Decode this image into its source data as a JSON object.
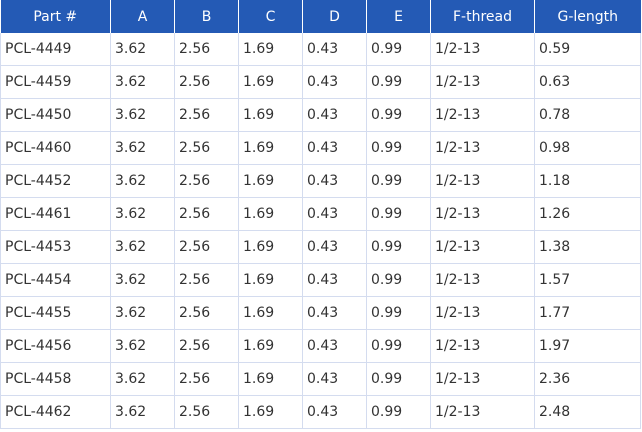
{
  "table": {
    "headers": [
      "Part #",
      "A",
      "B",
      "C",
      "D",
      "E",
      "F-thread",
      "G-length"
    ],
    "rows": [
      [
        "PCL-4449",
        "3.62",
        "2.56",
        "1.69",
        "0.43",
        "0.99",
        "1/2-13",
        "0.59"
      ],
      [
        "PCL-4459",
        "3.62",
        "2.56",
        "1.69",
        "0.43",
        "0.99",
        "1/2-13",
        "0.63"
      ],
      [
        "PCL-4450",
        "3.62",
        "2.56",
        "1.69",
        "0.43",
        "0.99",
        "1/2-13",
        "0.78"
      ],
      [
        "PCL-4460",
        "3.62",
        "2.56",
        "1.69",
        "0.43",
        "0.99",
        "1/2-13",
        "0.98"
      ],
      [
        "PCL-4452",
        "3.62",
        "2.56",
        "1.69",
        "0.43",
        "0.99",
        "1/2-13",
        "1.18"
      ],
      [
        "PCL-4461",
        "3.62",
        "2.56",
        "1.69",
        "0.43",
        "0.99",
        "1/2-13",
        "1.26"
      ],
      [
        "PCL-4453",
        "3.62",
        "2.56",
        "1.69",
        "0.43",
        "0.99",
        "1/2-13",
        "1.38"
      ],
      [
        "PCL-4454",
        "3.62",
        "2.56",
        "1.69",
        "0.43",
        "0.99",
        "1/2-13",
        "1.57"
      ],
      [
        "PCL-4455",
        "3.62",
        "2.56",
        "1.69",
        "0.43",
        "0.99",
        "1/2-13",
        "1.77"
      ],
      [
        "PCL-4456",
        "3.62",
        "2.56",
        "1.69",
        "0.43",
        "0.99",
        "1/2-13",
        "1.97"
      ],
      [
        "PCL-4458",
        "3.62",
        "2.56",
        "1.69",
        "0.43",
        "0.99",
        "1/2-13",
        "2.36"
      ],
      [
        "PCL-4462",
        "3.62",
        "2.56",
        "1.69",
        "0.43",
        "0.99",
        "1/2-13",
        "2.48"
      ]
    ]
  },
  "colors": {
    "header_background": "#245ab5",
    "header_text": "#ffffff",
    "cell_border": "#d4dcef",
    "cell_text": "#333333"
  }
}
